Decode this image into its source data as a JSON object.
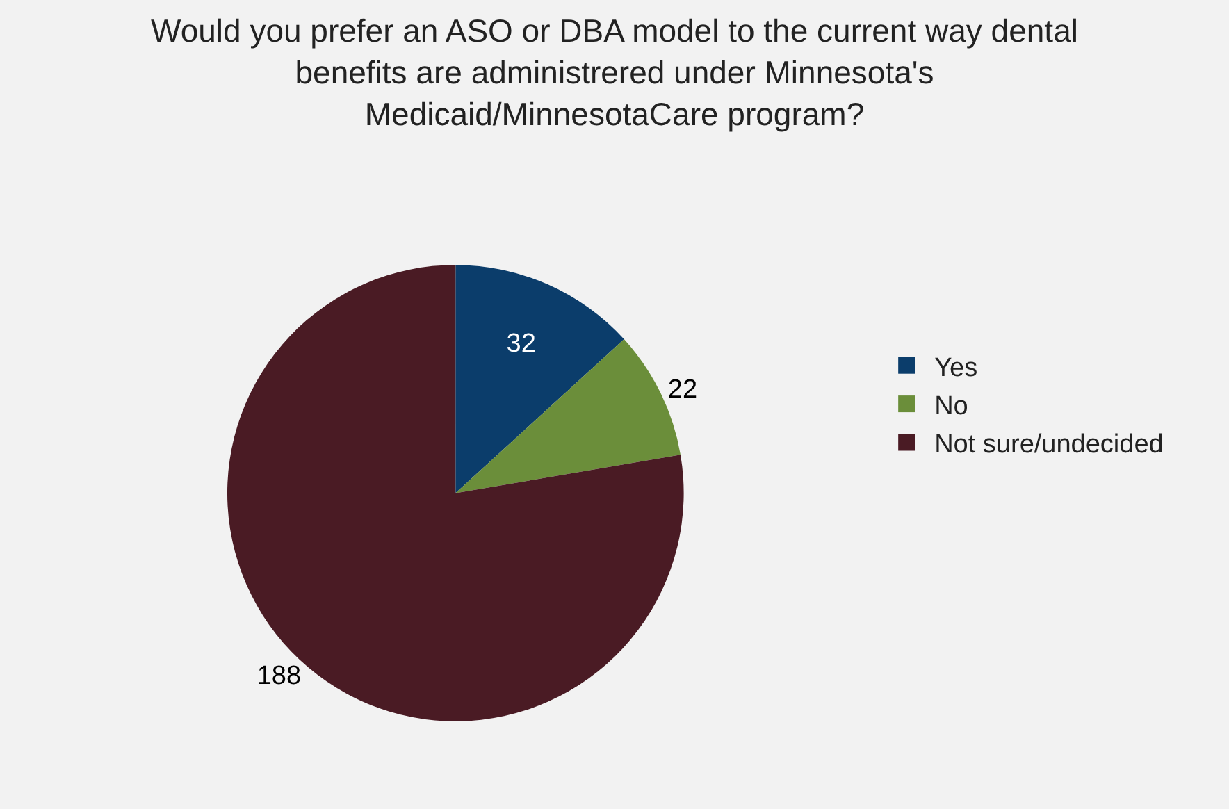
{
  "chart_data": {
    "type": "pie",
    "title": "Would you prefer an ASO or DBA model to the current way dental benefits are administrered under Minnesota's Medicaid/MinnesotaCare program?",
    "categories": [
      "Yes",
      "No",
      "Not sure/undecided"
    ],
    "values": [
      32,
      22,
      188
    ],
    "colors": [
      "#0b3d6b",
      "#6b8e3a",
      "#4a1b24"
    ],
    "data_labels": true,
    "legend": "right"
  }
}
